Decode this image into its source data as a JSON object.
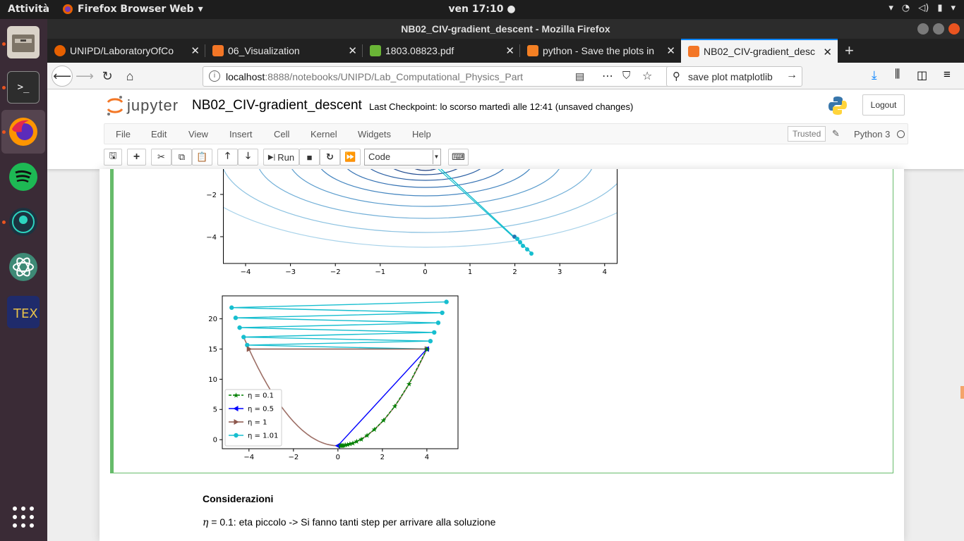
{
  "system": {
    "activities": "Attività",
    "app_name": "Firefox Browser Web",
    "clock": "ven 17:10 ●"
  },
  "window": {
    "title": "NB02_CIV-gradient_descent - Mozilla Firefox"
  },
  "tabs": [
    {
      "label": "UNIPD/LaboratoryOfCo",
      "color": "#e66000"
    },
    {
      "label": "06_Visualization",
      "color": "#f37626"
    },
    {
      "label": "1803.08823.pdf",
      "color": "#6ab536"
    },
    {
      "label": "python - Save the plots in",
      "color": "#f48024"
    },
    {
      "label": "NB02_CIV-gradient_desc",
      "color": "#f37626"
    }
  ],
  "nav": {
    "url_host": "localhost",
    "url_rest": ":8888/notebooks/UNIPD/Lab_Computational_Physics_Part",
    "search_value": "save plot matplotlib"
  },
  "jupyter": {
    "logo_text": "jupyter",
    "notebook_name": "NB02_CIV-gradient_descent",
    "checkpoint": "Last Checkpoint: lo scorso martedì alle 12:41  (unsaved changes)",
    "logout": "Logout",
    "menu": [
      "File",
      "Edit",
      "View",
      "Insert",
      "Cell",
      "Kernel",
      "Widgets",
      "Help"
    ],
    "trusted": "Trusted",
    "kernel": "Python 3",
    "run_label": "Run",
    "cell_type": "Code"
  },
  "plot1": {
    "xticks": [
      "−4",
      "−3",
      "−2",
      "−1",
      "0",
      "1",
      "2",
      "3",
      "4"
    ],
    "yticks": [
      "−2",
      "−4"
    ]
  },
  "chart_data": {
    "type": "line",
    "xticks": [
      "−4",
      "−2",
      "0",
      "2",
      "4"
    ],
    "yticks": [
      "0",
      "5",
      "10",
      "15",
      "20"
    ],
    "xlim": [
      -5.2,
      5.4
    ],
    "ylim": [
      -1.5,
      23.8
    ],
    "series": [
      {
        "name": "η = 0.1",
        "color": "#008000",
        "marker": "star",
        "x": [
          4,
          3.2,
          2.56,
          2.05,
          1.64,
          1.31,
          1.05,
          0.84,
          0.67,
          0.54,
          0.43,
          0.34,
          0.27,
          0.22,
          0.18,
          0.14,
          0.11
        ],
        "y": [
          15,
          9.24,
          5.55,
          3.2,
          1.69,
          0.72,
          0.1,
          -0.29,
          -0.55,
          -0.71,
          -0.81,
          -0.88,
          -0.93,
          -0.95,
          -0.97,
          -0.98,
          -0.99
        ]
      },
      {
        "name": "η = 0.5",
        "color": "#0000ff",
        "marker": "triangle-left",
        "x": [
          4,
          0,
          0
        ],
        "y": [
          15,
          -1,
          -1
        ]
      },
      {
        "name": "η = 1",
        "color": "#8c564b",
        "marker": "triangle-right",
        "x": [
          4,
          -4,
          4,
          -4
        ],
        "y": [
          15,
          15,
          15,
          15
        ]
      },
      {
        "name": "η = 1.01",
        "color": "#17becf",
        "marker": "circle",
        "x": [
          4,
          -4.08,
          4.16,
          -4.24,
          4.33,
          -4.42,
          4.51,
          -4.6,
          4.69,
          -4.78,
          4.88
        ],
        "y": [
          15,
          15.65,
          16.31,
          16.98,
          17.75,
          18.54,
          19.34,
          20.16,
          21,
          21.85,
          22.8
        ]
      }
    ]
  },
  "markdown": {
    "heading": "Considerazioni",
    "eta_symbol": "η",
    "eta_line": " = 0.1: eta piccolo -> Si fanno tanti step per arrivare alla soluzione"
  }
}
